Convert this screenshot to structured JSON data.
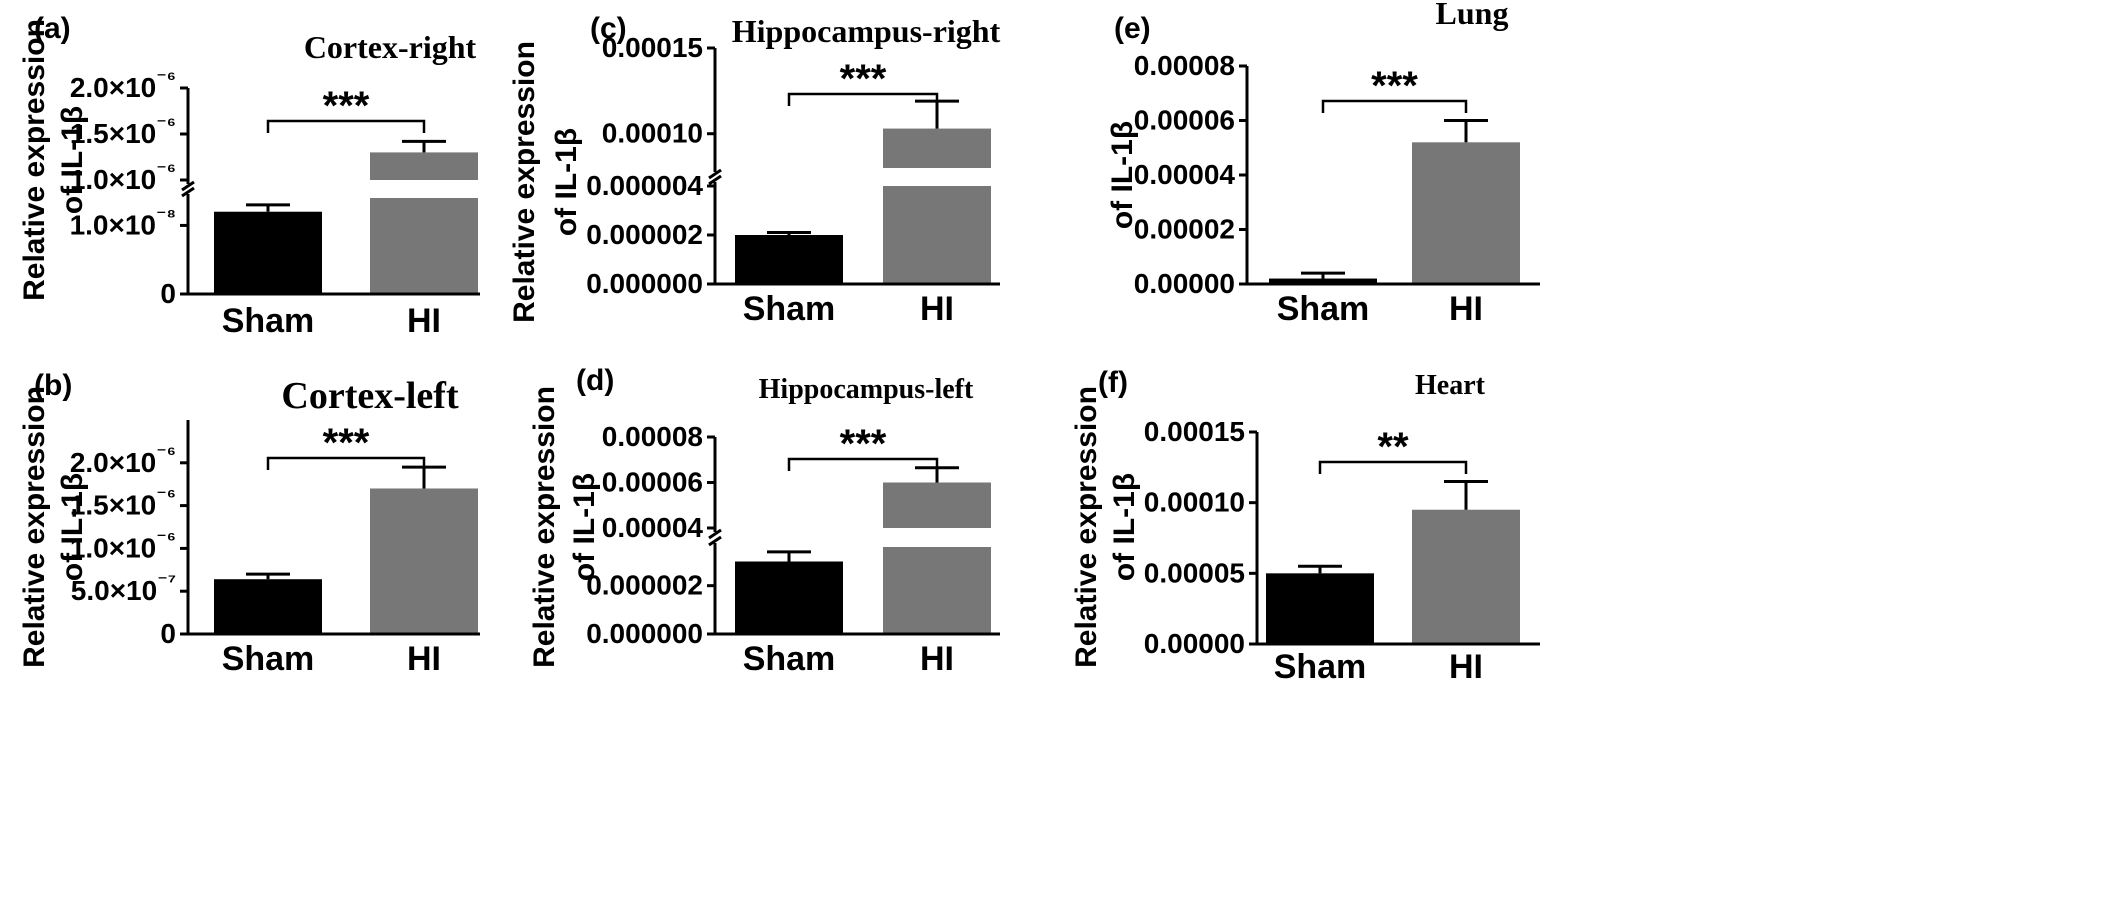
{
  "chart_data": [
    {
      "panel": "(a)",
      "title": "Cortex-right",
      "type": "bar",
      "ylabel_line1": "Relative expression",
      "ylabel_line2": "of IL-1β",
      "categories": [
        "Sham",
        "HI"
      ],
      "values": [
        1.2e-08,
        1.3e-06
      ],
      "errors": [
        1e-09,
        1.2e-07
      ],
      "colors": [
        "#000000",
        "#777777"
      ],
      "axis_break": true,
      "lower_ylim": [
        0,
        1.4e-08
      ],
      "upper_ylim": [
        1e-06,
        2e-06
      ],
      "lower_ticks": [
        "0",
        "1.0×10⁻⁸"
      ],
      "upper_ticks": [
        "1.0×10⁻⁶",
        "1.5×10⁻⁶",
        "2.0×10⁻⁶"
      ],
      "significance": "***"
    },
    {
      "panel": "(b)",
      "title": "Cortex-left",
      "type": "bar",
      "ylabel_line1": "Relative expression",
      "ylabel_line2": "of IL-1β",
      "categories": [
        "Sham",
        "HI"
      ],
      "values": [
        6.4e-07,
        1.7e-06
      ],
      "errors": [
        6e-08,
        2.5e-07
      ],
      "colors": [
        "#000000",
        "#777777"
      ],
      "axis_break": false,
      "ylim": [
        0,
        2.5e-06
      ],
      "ticks": [
        "0",
        "5.0×10⁻⁷",
        "1.0×10⁻⁶",
        "1.5×10⁻⁶",
        "2.0×10⁻⁶"
      ],
      "significance": "***"
    },
    {
      "panel": "(c)",
      "title": "Hippocampus-right",
      "type": "bar",
      "ylabel_line1": "Relative expression",
      "ylabel_line2": "of IL-1β",
      "categories": [
        "Sham",
        "HI"
      ],
      "values": [
        2e-06,
        0.000103
      ],
      "errors": [
        1e-07,
        1.6e-05
      ],
      "colors": [
        "#000000",
        "#777777"
      ],
      "axis_break": true,
      "lower_ylim": [
        0,
        4e-06
      ],
      "upper_ylim": [
        8e-05,
        0.00015
      ],
      "lower_ticks": [
        "0.000000",
        "0.000002",
        "0.000004"
      ],
      "upper_ticks": [
        "0.00010",
        "0.00015"
      ],
      "significance": "***"
    },
    {
      "panel": "(d)",
      "title": "Hippocampus-left",
      "type": "bar",
      "ylabel_line1": "Relative expression",
      "ylabel_line2": "of IL-1β",
      "categories": [
        "Sham",
        "HI"
      ],
      "values": [
        3e-06,
        6e-05
      ],
      "errors": [
        4e-07,
        6.5e-06
      ],
      "colors": [
        "#000000",
        "#777777"
      ],
      "axis_break": true,
      "lower_ylim": [
        0,
        3.6e-06
      ],
      "upper_ylim": [
        4e-05,
        8e-05
      ],
      "lower_ticks": [
        "0.000000",
        "0.000002"
      ],
      "upper_ticks": [
        "0.00004",
        "0.00006",
        "0.00008"
      ],
      "significance": "***"
    },
    {
      "panel": "(e)",
      "title": "Lung",
      "type": "bar",
      "ylabel_line1": "",
      "ylabel_line2": "of IL-1β",
      "categories": [
        "Sham",
        "HI"
      ],
      "values": [
        2e-06,
        5.2e-05
      ],
      "errors": [
        2e-06,
        8e-06
      ],
      "colors": [
        "#000000",
        "#777777"
      ],
      "axis_break": false,
      "ylim": [
        0,
        8e-05
      ],
      "ticks": [
        "0.00000",
        "0.00002",
        "0.00004",
        "0.00006",
        "0.00008"
      ],
      "significance": "***"
    },
    {
      "panel": "(f)",
      "title": "Heart",
      "type": "bar",
      "ylabel_line1": "Relative expression",
      "ylabel_line2": "of IL-1β",
      "categories": [
        "Sham",
        "HI"
      ],
      "values": [
        5e-05,
        9.5e-05
      ],
      "errors": [
        5e-06,
        2e-05
      ],
      "colors": [
        "#000000",
        "#777777"
      ],
      "axis_break": false,
      "ylim": [
        0,
        0.00015
      ],
      "ticks": [
        "0.00000",
        "0.00005",
        "0.00010",
        "0.00015"
      ],
      "significance": "**"
    }
  ]
}
